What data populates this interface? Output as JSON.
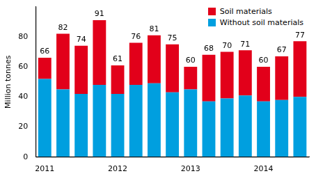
{
  "chart_data": {
    "type": "bar",
    "stacked": true,
    "y_label": "Million tonnes",
    "categories": [
      "2011",
      null,
      null,
      null,
      "2012",
      null,
      null,
      null,
      "2013",
      null,
      null,
      null,
      "2014",
      null,
      null
    ],
    "series": [
      {
        "name": "Without soil materials",
        "color": "#009fdf",
        "values": [
          52,
          45,
          42,
          48,
          42,
          48,
          49,
          43,
          45,
          37,
          39,
          41,
          37,
          38,
          40
        ]
      },
      {
        "name": "Soil materials",
        "color": "#e2001a",
        "values": [
          14,
          37,
          32,
          43,
          19,
          28,
          32,
          32,
          15,
          31,
          31,
          30,
          23,
          29,
          37
        ]
      }
    ],
    "totals": [
      66,
      82,
      74,
      91,
      61,
      76,
      81,
      75,
      60,
      68,
      70,
      71,
      60,
      67,
      77
    ],
    "ylim": [
      0,
      100
    ],
    "yticks": [
      0,
      20,
      40,
      60,
      80
    ],
    "grid": false,
    "legend": "upper right"
  }
}
